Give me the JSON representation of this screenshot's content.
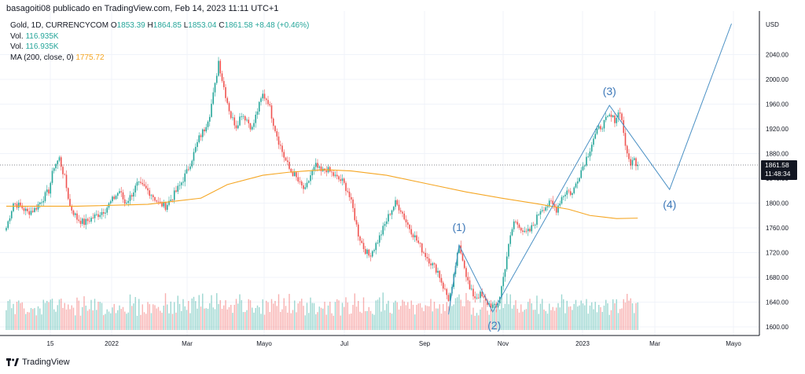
{
  "header": {
    "publisher_line": "basagoiti08 publicado en TradingView.com, Feb 14, 2023 11:11 UTC+1"
  },
  "legend": {
    "symbol": "Gold, 1D, CURRENCYCOM",
    "o_label": "O",
    "o_value": "1853.39",
    "h_label": "H",
    "h_value": "1864.85",
    "l_label": "L",
    "l_value": "1853.04",
    "c_label": "C",
    "c_value": "1861.58",
    "change": "+8.48 (+0.46%)",
    "vol1_label": "Vol.",
    "vol1_value": "116.935K",
    "vol2_label": "Vol.",
    "vol2_value": "116.935K",
    "ma_label": "MA (200, close, 0)",
    "ma_value": "1775.72"
  },
  "footer": {
    "brand": "TradingView"
  },
  "colors": {
    "up": "#26a69a",
    "down": "#ef5350",
    "ma": "#f5a623",
    "wave": "#4a90c4",
    "badge": "#131722"
  },
  "chart_data": {
    "type": "candlestick",
    "y_axis": {
      "unit": "USD",
      "ticks": [
        1600,
        1640,
        1680,
        1720,
        1760,
        1800,
        1840,
        1880,
        1920,
        1960,
        2000,
        2040
      ],
      "tick_labels": [
        "1600.00",
        "1640.00",
        "1680.00",
        "1720.00",
        "1760.00",
        "1800.00",
        "1840.00",
        "1880.00",
        "1920.00",
        "1960.00",
        "2000.00",
        "2040.00"
      ],
      "range": [
        1590,
        2090
      ]
    },
    "x_axis": {
      "labels": [
        "15",
        "2022",
        "Mar",
        "Mayo",
        "Jul",
        "Sep",
        "Nov",
        "2023",
        "Mar",
        "Mayo"
      ]
    },
    "last_price": {
      "value": 1861.58,
      "label": "1861.58",
      "countdown": "11:48:34"
    },
    "price_path": [
      [
        0,
        1760
      ],
      [
        4,
        1800
      ],
      [
        8,
        1795
      ],
      [
        12,
        1785
      ],
      [
        16,
        1790
      ],
      [
        20,
        1805
      ],
      [
        24,
        1820
      ],
      [
        27,
        1860
      ],
      [
        30,
        1872
      ],
      [
        33,
        1840
      ],
      [
        36,
        1795
      ],
      [
        40,
        1775
      ],
      [
        44,
        1768
      ],
      [
        48,
        1775
      ],
      [
        52,
        1782
      ],
      [
        56,
        1790
      ],
      [
        60,
        1805
      ],
      [
        64,
        1820
      ],
      [
        67,
        1800
      ],
      [
        70,
        1810
      ],
      [
        74,
        1830
      ],
      [
        78,
        1825
      ],
      [
        82,
        1815
      ],
      [
        86,
        1800
      ],
      [
        90,
        1795
      ],
      [
        94,
        1810
      ],
      [
        98,
        1828
      ],
      [
        102,
        1850
      ],
      [
        106,
        1880
      ],
      [
        109,
        1905
      ],
      [
        112,
        1920
      ],
      [
        115,
        1945
      ],
      [
        118,
        1990
      ],
      [
        120,
        2030
      ],
      [
        122,
        2000
      ],
      [
        124,
        1975
      ],
      [
        127,
        1940
      ],
      [
        130,
        1925
      ],
      [
        133,
        1945
      ],
      [
        136,
        1935
      ],
      [
        139,
        1920
      ],
      [
        142,
        1950
      ],
      [
        145,
        1975
      ],
      [
        148,
        1965
      ],
      [
        151,
        1930
      ],
      [
        154,
        1900
      ],
      [
        157,
        1875
      ],
      [
        160,
        1855
      ],
      [
        163,
        1845
      ],
      [
        166,
        1830
      ],
      [
        169,
        1820
      ],
      [
        172,
        1845
      ],
      [
        175,
        1860
      ],
      [
        178,
        1850
      ],
      [
        181,
        1855
      ],
      [
        184,
        1848
      ],
      [
        187,
        1840
      ],
      [
        190,
        1835
      ],
      [
        193,
        1820
      ],
      [
        196,
        1790
      ],
      [
        199,
        1750
      ],
      [
        202,
        1728
      ],
      [
        205,
        1715
      ],
      [
        208,
        1728
      ],
      [
        211,
        1745
      ],
      [
        214,
        1765
      ],
      [
        217,
        1785
      ],
      [
        220,
        1800
      ],
      [
        223,
        1790
      ],
      [
        226,
        1770
      ],
      [
        229,
        1755
      ],
      [
        232,
        1740
      ],
      [
        235,
        1725
      ],
      [
        238,
        1712
      ],
      [
        241,
        1700
      ],
      [
        244,
        1690
      ],
      [
        247,
        1665
      ],
      [
        250,
        1645
      ],
      [
        252,
        1660
      ],
      [
        254,
        1700
      ],
      [
        256,
        1728
      ],
      [
        258,
        1712
      ],
      [
        260,
        1685
      ],
      [
        262,
        1660
      ],
      [
        265,
        1648
      ],
      [
        268,
        1652
      ],
      [
        271,
        1640
      ],
      [
        274,
        1635
      ],
      [
        277,
        1630
      ],
      [
        279,
        1650
      ],
      [
        281,
        1680
      ],
      [
        283,
        1715
      ],
      [
        285,
        1745
      ],
      [
        287,
        1770
      ],
      [
        290,
        1765
      ],
      [
        293,
        1750
      ],
      [
        296,
        1755
      ],
      [
        299,
        1770
      ],
      [
        302,
        1790
      ],
      [
        305,
        1795
      ],
      [
        308,
        1800
      ],
      [
        311,
        1790
      ],
      [
        314,
        1810
      ],
      [
        317,
        1820
      ],
      [
        320,
        1815
      ],
      [
        323,
        1840
      ],
      [
        326,
        1860
      ],
      [
        329,
        1880
      ],
      [
        332,
        1905
      ],
      [
        335,
        1920
      ],
      [
        338,
        1930
      ],
      [
        341,
        1940
      ],
      [
        344,
        1935
      ],
      [
        347,
        1950
      ],
      [
        349,
        1915
      ],
      [
        351,
        1875
      ],
      [
        353,
        1865
      ],
      [
        355,
        1870
      ],
      [
        357,
        1861.58
      ]
    ],
    "ma200_path": [
      [
        0,
        1795
      ],
      [
        40,
        1795
      ],
      [
        80,
        1798
      ],
      [
        110,
        1808
      ],
      [
        125,
        1830
      ],
      [
        145,
        1845
      ],
      [
        160,
        1850
      ],
      [
        180,
        1854
      ],
      [
        195,
        1852
      ],
      [
        215,
        1845
      ],
      [
        240,
        1830
      ],
      [
        260,
        1818
      ],
      [
        280,
        1808
      ],
      [
        300,
        1799
      ],
      [
        318,
        1790
      ],
      [
        330,
        1780
      ],
      [
        345,
        1775
      ],
      [
        357,
        1775.72
      ]
    ],
    "elliott_wave": [
      {
        "label": "(1)",
        "bar": 256,
        "price": 1732
      },
      {
        "label": "(2)",
        "bar": 275,
        "price": 1624
      },
      {
        "label": "(3)",
        "bar": 341,
        "price": 1958
      },
      {
        "label": "(4)",
        "bar": 375,
        "price": 1822
      }
    ],
    "projection_end": {
      "bar": 410,
      "price": 2090
    }
  }
}
